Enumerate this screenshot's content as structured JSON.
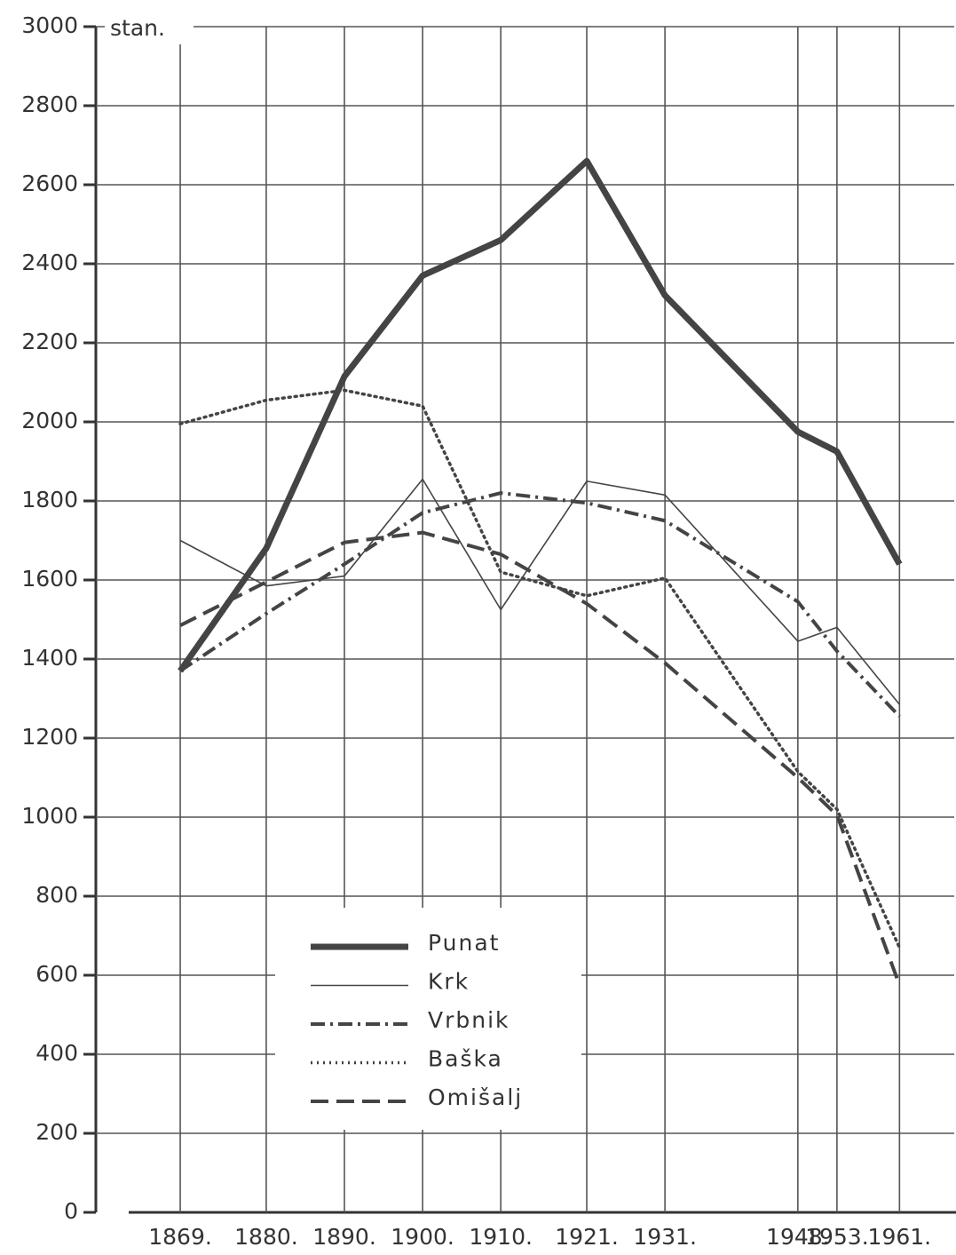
{
  "chart_data": {
    "type": "line",
    "y_unit_label": "stan.",
    "x": [
      1869,
      1880,
      1890,
      1900,
      1910,
      1921,
      1931,
      1948,
      1953,
      1961
    ],
    "xlim": [
      1862.75,
      1968
    ],
    "xticks": [
      {
        "value": 1869,
        "label": "1869."
      },
      {
        "value": 1880,
        "label": "1880."
      },
      {
        "value": 1890,
        "label": "1890."
      },
      {
        "value": 1900,
        "label": "1900."
      },
      {
        "value": 1910,
        "label": "1910."
      },
      {
        "value": 1921,
        "label": "1921."
      },
      {
        "value": 1931,
        "label": "1931."
      },
      {
        "value": 1948,
        "label": "1948."
      },
      {
        "value": 1953,
        "label": "1953."
      },
      {
        "value": 1961,
        "label": "1961."
      }
    ],
    "ylim": [
      0,
      3000
    ],
    "yticks": [
      0,
      200,
      400,
      600,
      800,
      1000,
      1200,
      1400,
      1600,
      1800,
      2000,
      2200,
      2400,
      2600,
      2800,
      3000
    ],
    "grid": true,
    "legend": "lower left",
    "series": [
      {
        "name": "Punat",
        "color": "#444444",
        "width": 7,
        "dash": "none",
        "values": [
          1370,
          1680,
          2115,
          2370,
          2460,
          2660,
          2320,
          1975,
          1925,
          1640
        ]
      },
      {
        "name": "Krk",
        "color": "#444444",
        "width": 1.6,
        "dash": "none",
        "values": [
          1700,
          1585,
          1610,
          1855,
          1525,
          1850,
          1815,
          1445,
          1480,
          1285
        ]
      },
      {
        "name": "Vrbnik",
        "color": "#444444",
        "width": 4,
        "dash": "16 6 3 6",
        "values": [
          1370,
          1515,
          1640,
          1770,
          1820,
          1795,
          1750,
          1545,
          1420,
          1255
        ]
      },
      {
        "name": "Baška",
        "color": "#444444",
        "width": 3.5,
        "dash": "2 5",
        "values": [
          1995,
          2055,
          2080,
          2040,
          1620,
          1560,
          1605,
          1115,
          1020,
          670
        ]
      },
      {
        "name": "Omišalj",
        "color": "#444444",
        "width": 4,
        "dash": "20 9",
        "values": [
          1485,
          1595,
          1695,
          1720,
          1665,
          1540,
          1390,
          1100,
          1005,
          575
        ]
      }
    ]
  }
}
